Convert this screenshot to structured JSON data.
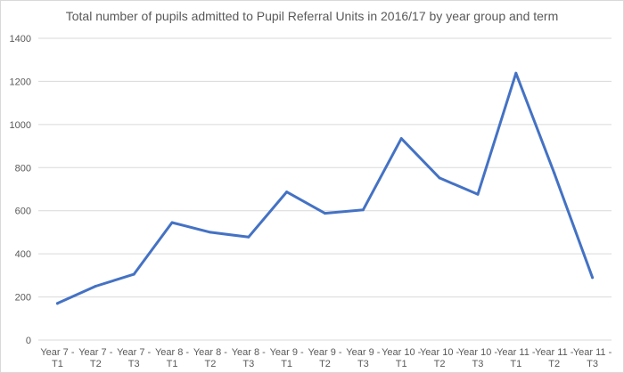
{
  "chart_data": {
    "type": "line",
    "title": "Total number of pupils admitted to Pupil Referral Units in 2016/17 by year group and term",
    "xlabel": "",
    "ylabel": "",
    "ylim": [
      0,
      1400
    ],
    "yticks": [
      0,
      200,
      400,
      600,
      800,
      1000,
      1200,
      1400
    ],
    "grid": true,
    "categories": [
      [
        "Year 7 -",
        "T1"
      ],
      [
        "Year 7 -",
        "T2"
      ],
      [
        "Year 7 -",
        "T3"
      ],
      [
        "Year 8 -",
        "T1"
      ],
      [
        "Year 8 -",
        "T2"
      ],
      [
        "Year 8 -",
        "T3"
      ],
      [
        "Year 9 -",
        "T1"
      ],
      [
        "Year 9 -",
        "T2"
      ],
      [
        "Year 9 -",
        "T3"
      ],
      [
        "Year 10 -",
        "T1"
      ],
      [
        "Year 10 -",
        "T2"
      ],
      [
        "Year 10 -",
        "T3"
      ],
      [
        "Year 11 -",
        "T1"
      ],
      [
        "Year 11 -",
        "T2"
      ],
      [
        "Year 11 -",
        "T3"
      ]
    ],
    "series": [
      {
        "color": "#4472c4",
        "values": [
          170,
          250,
          305,
          545,
          500,
          478,
          687,
          588,
          604,
          935,
          752,
          676,
          1238,
          775,
          290
        ]
      }
    ]
  }
}
